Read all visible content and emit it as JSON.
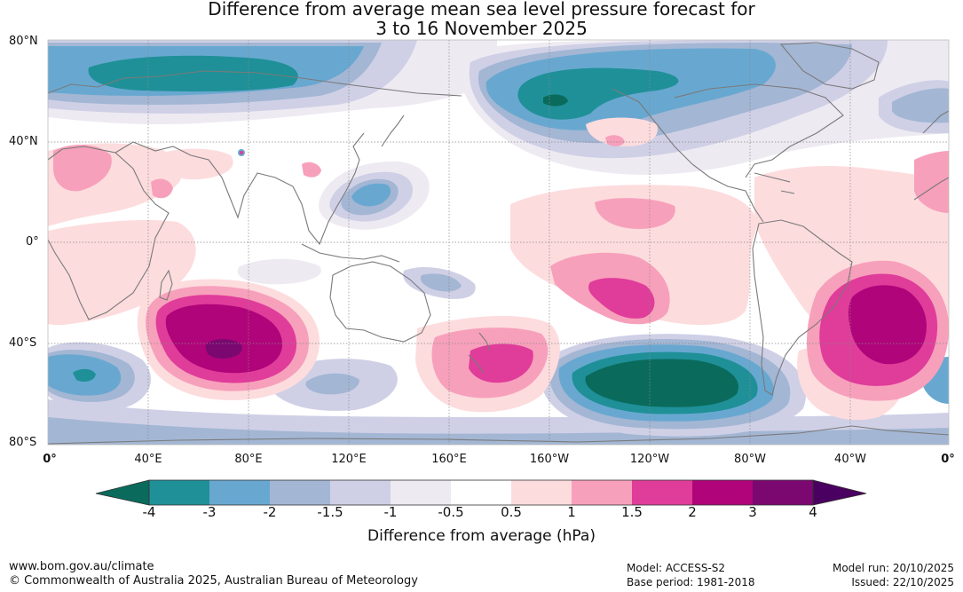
{
  "title": {
    "line1": "Difference from average mean sea level pressure forecast for",
    "line2": "3 to 16 November 2025"
  },
  "map": {
    "lat_labels": [
      "80°N",
      "40°N",
      "0°",
      "40°S",
      "80°S"
    ],
    "lon_labels": [
      "0°",
      "40°E",
      "80°E",
      "120°E",
      "160°E",
      "160°W",
      "120°W",
      "80°W",
      "40°W",
      "0°"
    ],
    "anomaly_regions": [
      {
        "name": "north-atlantic-europe-low",
        "value": -4
      },
      {
        "name": "north-pacific-low",
        "value": -4
      },
      {
        "name": "southern-ocean-pacific-low",
        "value": -4
      },
      {
        "name": "south-indian-ocean-high",
        "value": 4
      },
      {
        "name": "south-atlantic-high",
        "value": 3
      },
      {
        "name": "tasman-high",
        "value": 2
      },
      {
        "name": "eastern-pacific-high",
        "value": 2
      }
    ],
    "colors": {
      "land_outline": "#7a7a7a",
      "grid": "#888888"
    }
  },
  "colorbar": {
    "ticks": [
      "-4",
      "-3",
      "-2",
      "-1.5",
      "-1",
      "-0.5",
      "0.5",
      "1",
      "1.5",
      "2",
      "3",
      "4"
    ],
    "colors": [
      "#0a6b5c",
      "#1f9098",
      "#68a8d0",
      "#a3b6d4",
      "#cfd0e6",
      "#eeeaf2",
      "#ffffff",
      "#fddcde",
      "#f7a0bb",
      "#e03c9a",
      "#b0047a",
      "#7a0870",
      "#4a0060"
    ],
    "title": "Difference from average (hPa)"
  },
  "footer": {
    "website": "www.bom.gov.au/climate",
    "copyright": "© Commonwealth of Australia 2025, Australian Bureau of Meteorology",
    "model": "Model: ACCESS-S2",
    "base_period": "Base period: 1981-2018",
    "model_run": "Model run: 20/10/2025",
    "issued": "Issued: 22/10/2025"
  }
}
